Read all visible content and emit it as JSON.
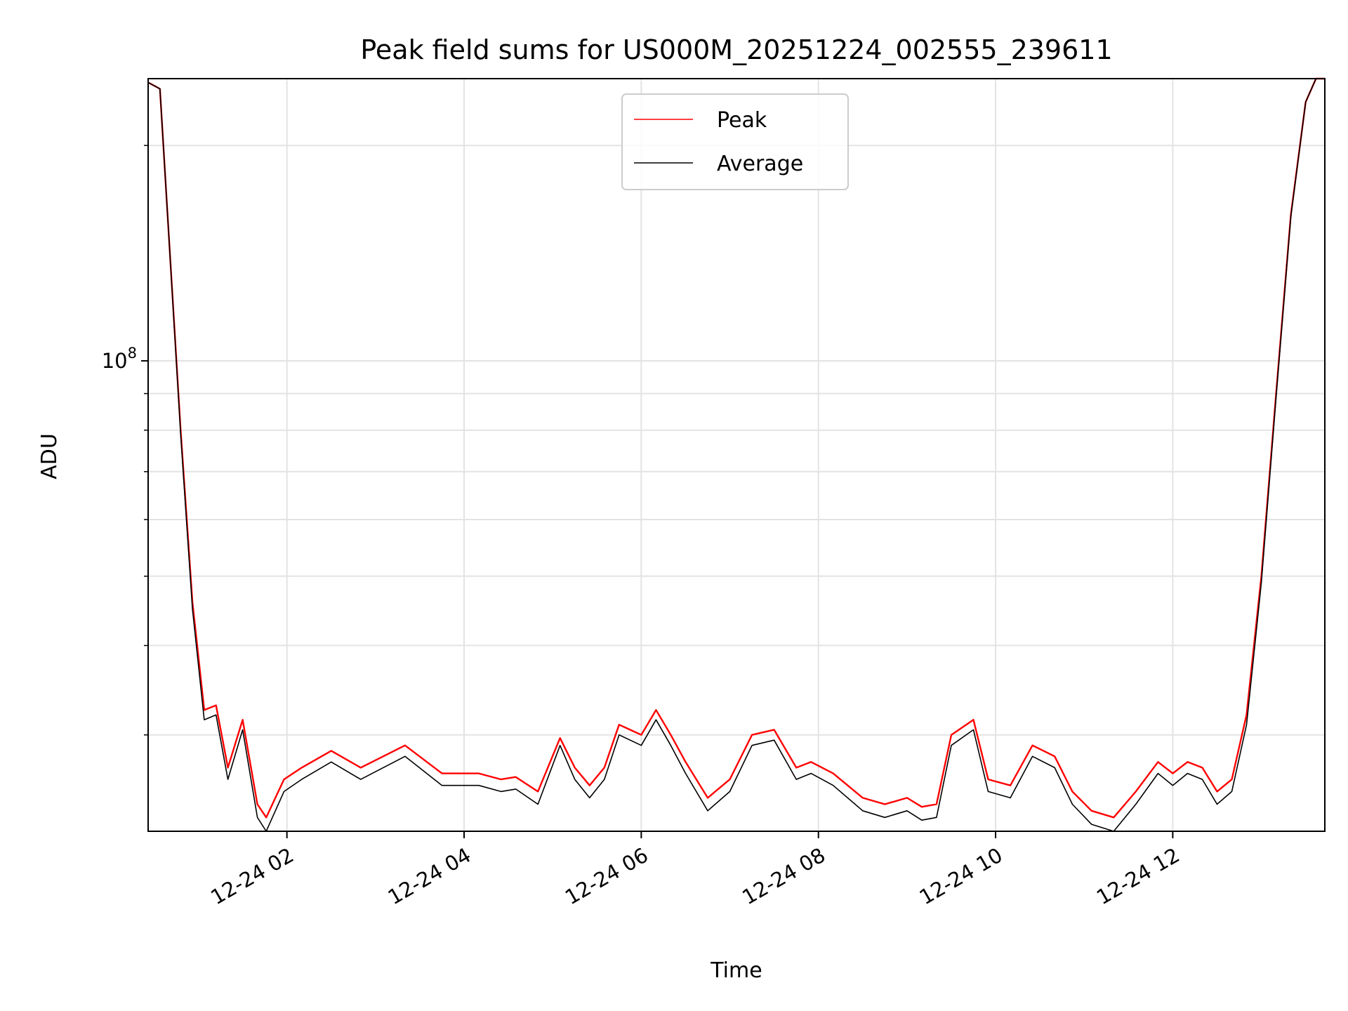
{
  "chart_data": {
    "type": "line",
    "title": "Peak field sums for US000M_20251224_002555_239611",
    "xlabel": "Time",
    "ylabel": "ADU",
    "yscale": "log",
    "xlim": [
      "2025-12-24 00:26",
      "2025-12-24 13:43"
    ],
    "ylim": [
      22000000.0,
      248000000.0
    ],
    "x_ticks": [
      "12-24 02",
      "12-24 04",
      "12-24 06",
      "12-24 08",
      "12-24 10",
      "12-24 12"
    ],
    "y_ticks": [
      {
        "label_base": "10",
        "label_exp": "8",
        "value": 100000000
      }
    ],
    "grid": true,
    "legend_position": "upper center",
    "series": [
      {
        "name": "Peak",
        "color": "#ff0000",
        "x": [
          "2025-12-24 00:26",
          "2025-12-24 00:34",
          "2025-12-24 00:40",
          "2025-12-24 00:48",
          "2025-12-24 00:56",
          "2025-12-24 01:04",
          "2025-12-24 01:12",
          "2025-12-24 01:20",
          "2025-12-24 01:30",
          "2025-12-24 01:40",
          "2025-12-24 01:46",
          "2025-12-24 01:58",
          "2025-12-24 02:10",
          "2025-12-24 02:30",
          "2025-12-24 02:50",
          "2025-12-24 03:20",
          "2025-12-24 03:45",
          "2025-12-24 04:10",
          "2025-12-24 04:25",
          "2025-12-24 04:35",
          "2025-12-24 04:50",
          "2025-12-24 05:05",
          "2025-12-24 05:15",
          "2025-12-24 05:25",
          "2025-12-24 05:35",
          "2025-12-24 05:45",
          "2025-12-24 06:00",
          "2025-12-24 06:10",
          "2025-12-24 06:20",
          "2025-12-24 06:30",
          "2025-12-24 06:45",
          "2025-12-24 07:00",
          "2025-12-24 07:15",
          "2025-12-24 07:30",
          "2025-12-24 07:45",
          "2025-12-24 07:55",
          "2025-12-24 08:10",
          "2025-12-24 08:30",
          "2025-12-24 08:45",
          "2025-12-24 09:00",
          "2025-12-24 09:10",
          "2025-12-24 09:20",
          "2025-12-24 09:30",
          "2025-12-24 09:45",
          "2025-12-24 09:55",
          "2025-12-24 10:10",
          "2025-12-24 10:25",
          "2025-12-24 10:40",
          "2025-12-24 10:52",
          "2025-12-24 11:05",
          "2025-12-24 11:20",
          "2025-12-24 11:35",
          "2025-12-24 11:50",
          "2025-12-24 12:00",
          "2025-12-24 12:10",
          "2025-12-24 12:20",
          "2025-12-24 12:30",
          "2025-12-24 12:40",
          "2025-12-24 12:50",
          "2025-12-24 13:00",
          "2025-12-24 13:10",
          "2025-12-24 13:20",
          "2025-12-24 13:30",
          "2025-12-24 13:37",
          "2025-12-24 13:43"
        ],
        "values": [
          245000000.0,
          240000000.0,
          150000000.0,
          80000000.0,
          46000000.0,
          32500000.0,
          33000000.0,
          27000000.0,
          31500000.0,
          24000000.0,
          23000000.0,
          26000000.0,
          27000000.0,
          28500000.0,
          27000000.0,
          29000000.0,
          26500000.0,
          26500000.0,
          26000000.0,
          26200000.0,
          25000000.0,
          29700000.0,
          27000000.0,
          25500000.0,
          27000000.0,
          31000000.0,
          30000000.0,
          32500000.0,
          30000000.0,
          27500000.0,
          24500000.0,
          26000000.0,
          30000000.0,
          30500000.0,
          27000000.0,
          27500000.0,
          26500000.0,
          24500000.0,
          24000000.0,
          24500000.0,
          23800000.0,
          24000000.0,
          30000000.0,
          31500000.0,
          26000000.0,
          25500000.0,
          29000000.0,
          28000000.0,
          25000000.0,
          23500000.0,
          23000000.0,
          25000000.0,
          27500000.0,
          26500000.0,
          27500000.0,
          27000000.0,
          25000000.0,
          26000000.0,
          32000000.0,
          50000000.0,
          90000000.0,
          160000000.0,
          230000000.0,
          248000000.0,
          248000000.0
        ]
      },
      {
        "name": "Average",
        "color": "#000000",
        "x": [
          "2025-12-24 00:26",
          "2025-12-24 00:34",
          "2025-12-24 00:40",
          "2025-12-24 00:48",
          "2025-12-24 00:56",
          "2025-12-24 01:04",
          "2025-12-24 01:12",
          "2025-12-24 01:20",
          "2025-12-24 01:30",
          "2025-12-24 01:40",
          "2025-12-24 01:46",
          "2025-12-24 01:58",
          "2025-12-24 02:10",
          "2025-12-24 02:30",
          "2025-12-24 02:50",
          "2025-12-24 03:20",
          "2025-12-24 03:45",
          "2025-12-24 04:10",
          "2025-12-24 04:25",
          "2025-12-24 04:35",
          "2025-12-24 04:50",
          "2025-12-24 05:05",
          "2025-12-24 05:15",
          "2025-12-24 05:25",
          "2025-12-24 05:35",
          "2025-12-24 05:45",
          "2025-12-24 06:00",
          "2025-12-24 06:10",
          "2025-12-24 06:20",
          "2025-12-24 06:30",
          "2025-12-24 06:45",
          "2025-12-24 07:00",
          "2025-12-24 07:15",
          "2025-12-24 07:30",
          "2025-12-24 07:45",
          "2025-12-24 07:55",
          "2025-12-24 08:10",
          "2025-12-24 08:30",
          "2025-12-24 08:45",
          "2025-12-24 09:00",
          "2025-12-24 09:10",
          "2025-12-24 09:20",
          "2025-12-24 09:30",
          "2025-12-24 09:45",
          "2025-12-24 09:55",
          "2025-12-24 10:10",
          "2025-12-24 10:25",
          "2025-12-24 10:40",
          "2025-12-24 10:52",
          "2025-12-24 11:05",
          "2025-12-24 11:20",
          "2025-12-24 11:35",
          "2025-12-24 11:50",
          "2025-12-24 12:00",
          "2025-12-24 12:10",
          "2025-12-24 12:20",
          "2025-12-24 12:30",
          "2025-12-24 12:40",
          "2025-12-24 12:50",
          "2025-12-24 13:00",
          "2025-12-24 13:10",
          "2025-12-24 13:20",
          "2025-12-24 13:30",
          "2025-12-24 13:37",
          "2025-12-24 13:43"
        ],
        "values": [
          245000000.0,
          240000000.0,
          150000000.0,
          79000000.0,
          45000000.0,
          31500000.0,
          32000000.0,
          26000000.0,
          30500000.0,
          23000000.0,
          22000000.0,
          25000000.0,
          26000000.0,
          27500000.0,
          26000000.0,
          28000000.0,
          25500000.0,
          25500000.0,
          25000000.0,
          25200000.0,
          24000000.0,
          29000000.0,
          26000000.0,
          24500000.0,
          26000000.0,
          30000000.0,
          29000000.0,
          31500000.0,
          29000000.0,
          26500000.0,
          23500000.0,
          25000000.0,
          29000000.0,
          29500000.0,
          26000000.0,
          26500000.0,
          25500000.0,
          23500000.0,
          23000000.0,
          23500000.0,
          22800000.0,
          23000000.0,
          29000000.0,
          30500000.0,
          25000000.0,
          24500000.0,
          28000000.0,
          27000000.0,
          24000000.0,
          22500000.0,
          22000000.0,
          24000000.0,
          26500000.0,
          25500000.0,
          26500000.0,
          26000000.0,
          24000000.0,
          25000000.0,
          31000000.0,
          49000000.0,
          89000000.0,
          159000000.0,
          230000000.0,
          248000000.0,
          248000000.0
        ]
      }
    ]
  }
}
